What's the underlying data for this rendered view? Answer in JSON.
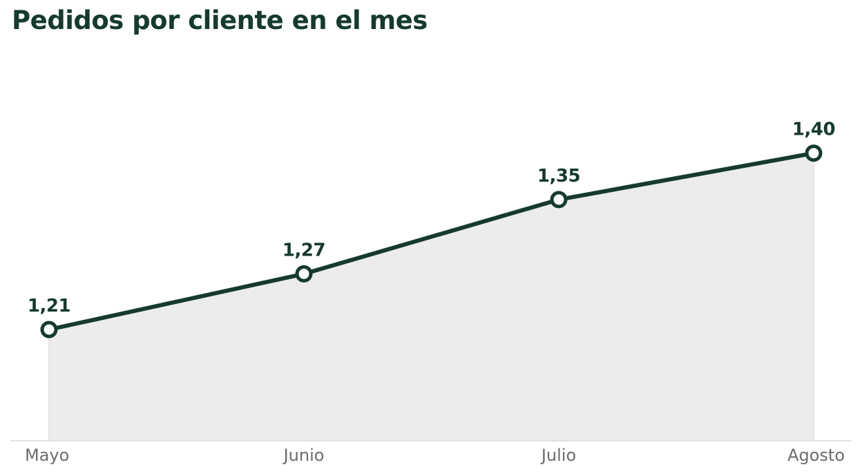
{
  "title": "Pedidos por cliente en el mes",
  "chart_data": {
    "type": "area",
    "title": "Pedidos por cliente en el mes",
    "categories": [
      "Mayo",
      "Junio",
      "Julio",
      "Agosto"
    ],
    "series": [
      {
        "values": [
          1.21,
          1.27,
          1.35,
          1.4
        ],
        "labels": [
          "1,21",
          "1,27",
          "1,35",
          "1,40"
        ]
      }
    ],
    "xlabel": "",
    "ylabel": "",
    "grid": false,
    "legend": "none",
    "colors": {
      "line": "#163a2e",
      "fill": "#ececeb",
      "marker_fill": "#ffffff",
      "baseline": "#d9d9d9",
      "tick_text": "#6b6b6b"
    }
  }
}
